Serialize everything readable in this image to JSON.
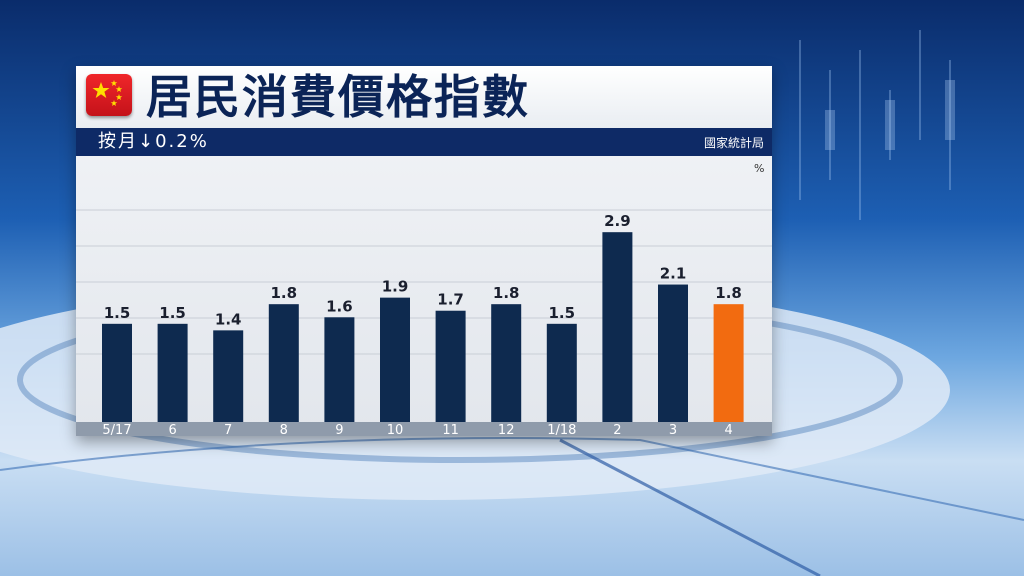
{
  "title": "居民消費價格指數",
  "subtitle": "按月↓0.2%",
  "source": "國家統計局",
  "unit": "%",
  "colors": {
    "bar": "#0e2a4f",
    "highlight": "#f26b10",
    "header": "#0e2a66"
  },
  "chart_data": {
    "type": "bar",
    "title": "居民消費價格指數",
    "subtitle": "按月↓0.2%",
    "ylabel": "%",
    "categories": [
      "5/17",
      "6",
      "7",
      "8",
      "9",
      "10",
      "11",
      "12",
      "1/18",
      "2",
      "3",
      "4"
    ],
    "values": [
      1.5,
      1.5,
      1.4,
      1.8,
      1.6,
      1.9,
      1.7,
      1.8,
      1.5,
      2.9,
      2.1,
      1.8
    ],
    "highlight_category": "4",
    "ylim": [
      0,
      3.3
    ],
    "grid": true,
    "legend": "none"
  }
}
